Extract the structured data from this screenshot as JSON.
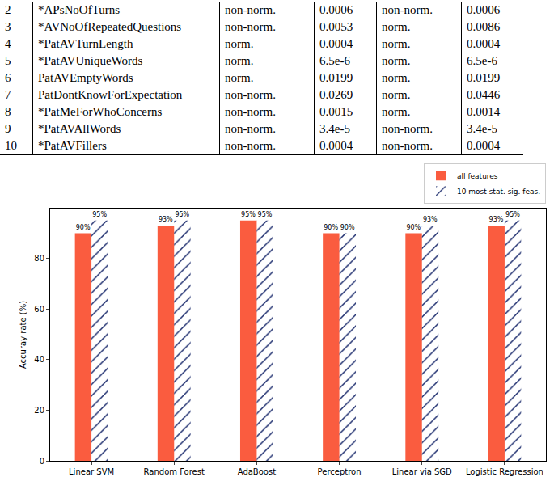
{
  "table": {
    "rows": [
      [
        "2",
        "*APsNoOfTurns",
        "non-norm.",
        "0.0006",
        "non-norm.",
        "0.0006"
      ],
      [
        "3",
        "*AVNoOfRepeatedQuestions",
        "non-norm.",
        "0.0053",
        "norm.",
        "0.0086"
      ],
      [
        "4",
        "*PatAVTurnLength",
        "norm.",
        "0.0004",
        "norm.",
        "0.0004"
      ],
      [
        "5",
        "*PatAVUniqueWords",
        "norm.",
        "6.5e-6",
        "norm.",
        "6.5e-6"
      ],
      [
        "6",
        "PatAVEmptyWords",
        "norm.",
        "0.0199",
        "norm.",
        "0.0199"
      ],
      [
        "7",
        "PatDontKnowForExpectation",
        "non-norm.",
        "0.0269",
        "norm.",
        "0.0446"
      ],
      [
        "8",
        "*PatMeForWhoConcerns",
        "non-norm.",
        "0.0015",
        "norm.",
        "0.0014"
      ],
      [
        "9",
        "*PatAVAllWords",
        "non-norm.",
        "3.4e-5",
        "non-norm.",
        "3.4e-5"
      ],
      [
        "10",
        "*PatAVFillers",
        "non-norm.",
        "0.0004",
        "non-norm.",
        "0.0004"
      ]
    ]
  },
  "chart_data": {
    "type": "bar",
    "categories": [
      "Linear SVM",
      "Random Forest",
      "AdaBoost",
      "Perceptron",
      "Linear via SGD",
      "Logistic Regression"
    ],
    "series": [
      {
        "name": "all features",
        "color": "#fa5c3f",
        "values": [
          90,
          93,
          95,
          90,
          90,
          93
        ],
        "value_labels": [
          "90%",
          "93%",
          "95%",
          "90%",
          "90%",
          "93%"
        ]
      },
      {
        "name": "10 most stat. sig. feas.",
        "color": "#4169e1",
        "values": [
          95,
          95,
          95,
          90,
          93,
          95
        ],
        "value_labels": [
          "95%",
          "95%",
          "95%",
          "90%",
          "93%",
          "95%"
        ]
      }
    ],
    "ylabel": "Accuray rate (%)",
    "ylim": [
      0,
      99.75
    ],
    "yticks": [
      0,
      20,
      40,
      60,
      80
    ],
    "data_labels": true,
    "legend": "upper right",
    "grid": false
  }
}
